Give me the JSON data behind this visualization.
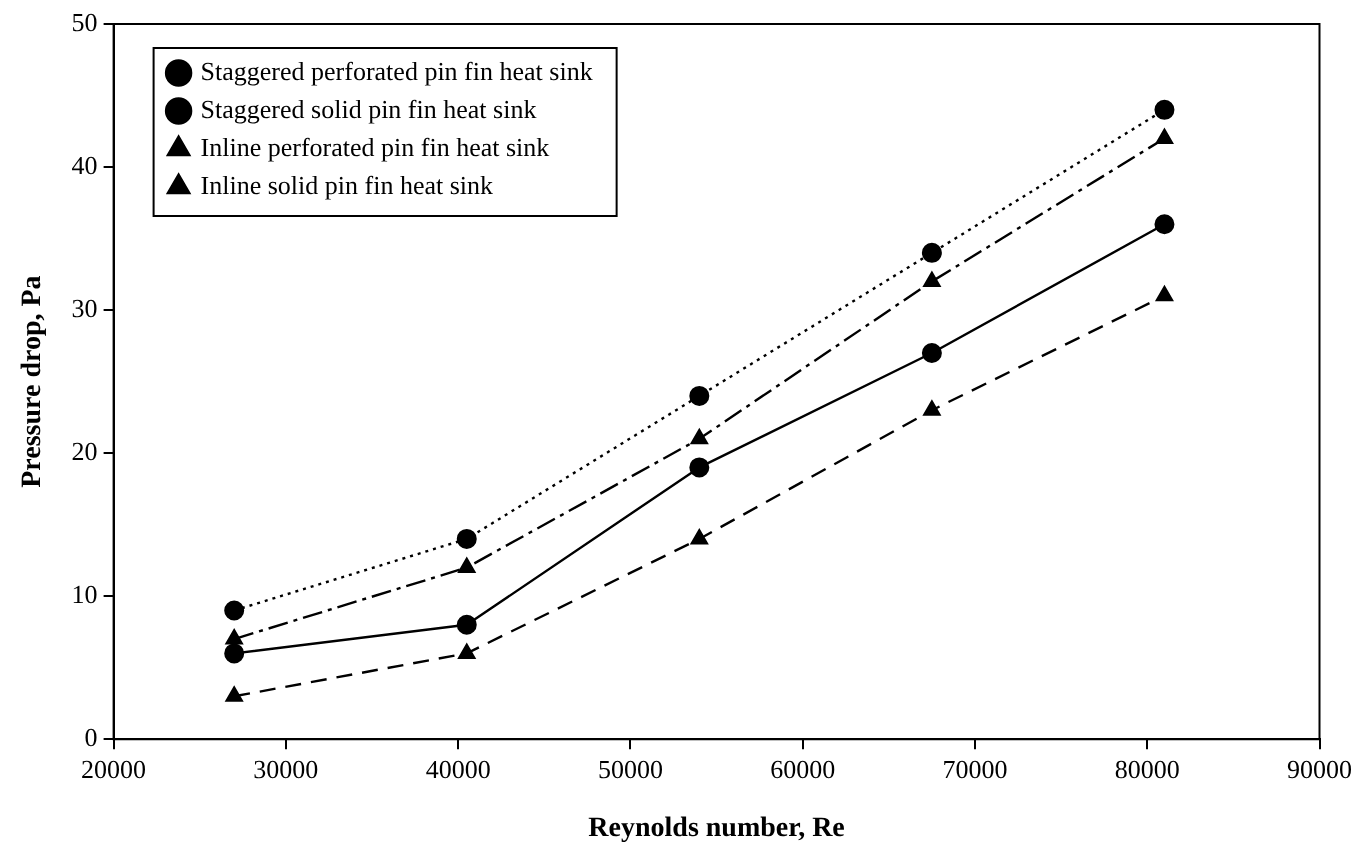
{
  "chart_data": {
    "type": "line",
    "xlabel": "Reynolds number, Re",
    "ylabel": "Pressure drop, Pa",
    "x": [
      27000,
      40500,
      54000,
      67500,
      81000
    ],
    "series": [
      {
        "name": "Staggered perforated pin fin heat sink",
        "color": "#000000",
        "values": [
          6,
          8,
          19,
          27,
          36
        ],
        "marker": "circle",
        "line_style": "solid"
      },
      {
        "name": "Staggered solid pin fin heat sink",
        "color": "#000000",
        "values": [
          9,
          14,
          24,
          34,
          44
        ],
        "marker": "circle",
        "line_style": "dotted"
      },
      {
        "name": "Inline perforated pin fin heat sink",
        "color": "#000000",
        "values": [
          3,
          6,
          14,
          23,
          31
        ],
        "marker": "triangle",
        "line_style": "dashed"
      },
      {
        "name": "Inline solid pin fin heat sink",
        "color": "#000000",
        "values": [
          7,
          12,
          21,
          32,
          42
        ],
        "marker": "triangle",
        "line_style": "dashdot"
      }
    ],
    "xlim": [
      20000,
      90000
    ],
    "xticks": [
      20000,
      30000,
      40000,
      50000,
      60000,
      70000,
      80000,
      90000
    ],
    "ylim": [
      0,
      50
    ],
    "yticks": [
      0,
      10,
      20,
      30,
      40,
      50
    ],
    "grid": false,
    "legend": "top left"
  }
}
